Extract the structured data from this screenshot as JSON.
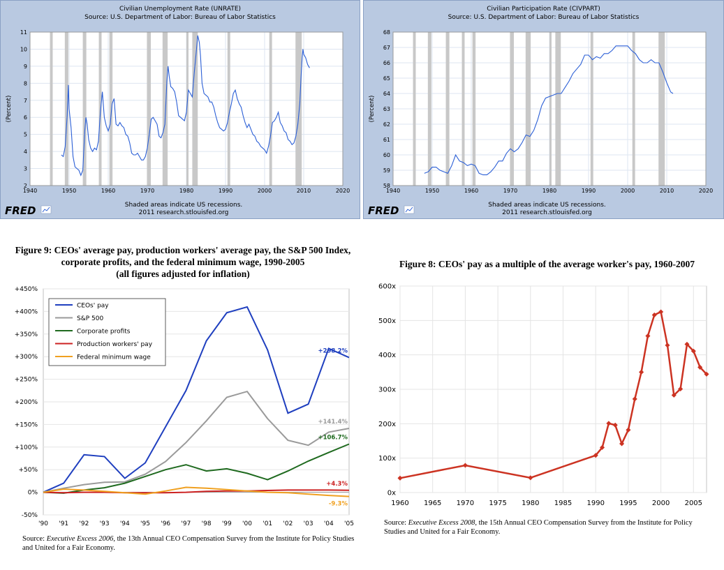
{
  "chart_data": [
    {
      "type": "line",
      "title": "Civilian Unemployment Rate (UNRATE)",
      "subtitle": "Source: U.S. Department of Labor: Bureau of Labor Statistics",
      "ylabel": "(Percent)",
      "xlim": [
        1940,
        2020
      ],
      "ylim": [
        2,
        11
      ],
      "x_ticks": [
        "1940",
        "1950",
        "1960",
        "1970",
        "1980",
        "1990",
        "2000",
        "2010",
        "2020"
      ],
      "y_ticks": [
        "2",
        "3",
        "4",
        "5",
        "6",
        "7",
        "8",
        "9",
        "10",
        "11"
      ],
      "recessions": [
        [
          1945.1,
          1945.8
        ],
        [
          1948.9,
          1949.8
        ],
        [
          1953.5,
          1954.4
        ],
        [
          1957.6,
          1958.3
        ],
        [
          1960.3,
          1961.1
        ],
        [
          1969.9,
          1970.9
        ],
        [
          1973.9,
          1975.2
        ],
        [
          1980.0,
          1980.5
        ],
        [
          1981.5,
          1982.9
        ],
        [
          1990.5,
          1991.2
        ],
        [
          2001.2,
          2001.9
        ],
        [
          2007.9,
          2009.5
        ]
      ],
      "series": [
        {
          "x": [
            1948,
            1948.5,
            1949,
            1949.5,
            1949.8,
            1950,
            1950.5,
            1951,
            1951.5,
            1952,
            1952.5,
            1953,
            1953.5,
            1954,
            1954.3,
            1954.6,
            1955,
            1955.5,
            1956,
            1956.5,
            1957,
            1957.5,
            1958,
            1958.5,
            1959,
            1959.5,
            1960,
            1960.5,
            1961,
            1961.5,
            1962,
            1962.5,
            1963,
            1963.5,
            1964,
            1964.5,
            1965,
            1965.5,
            1966,
            1966.5,
            1967,
            1967.5,
            1968,
            1968.5,
            1969,
            1969.5,
            1970,
            1970.5,
            1971,
            1971.5,
            1972,
            1972.5,
            1973,
            1973.5,
            1974,
            1974.5,
            1975,
            1975.3,
            1975.6,
            1976,
            1976.5,
            1977,
            1977.5,
            1978,
            1978.5,
            1979,
            1979.5,
            1980,
            1980.5,
            1981,
            1981.5,
            1982,
            1982.5,
            1982.9,
            1983.3,
            1983.6,
            1984,
            1984.5,
            1985,
            1985.5,
            1986,
            1986.5,
            1987,
            1987.5,
            1988,
            1988.5,
            1989,
            1989.5,
            1990,
            1990.5,
            1991,
            1991.5,
            1992,
            1992.5,
            1993,
            1993.5,
            1994,
            1994.5,
            1995,
            1995.5,
            1996,
            1996.5,
            1997,
            1997.5,
            1998,
            1998.5,
            1999,
            1999.5,
            2000,
            2000.5,
            2001,
            2001.5,
            2002,
            2002.5,
            2003,
            2003.5,
            2004,
            2004.5,
            2005,
            2005.5,
            2006,
            2006.5,
            2007,
            2007.5,
            2008,
            2008.5,
            2009,
            2009.3,
            2009.6,
            2009.8,
            2010,
            2010.5,
            2011,
            2011.5
          ],
          "y": [
            3.8,
            3.7,
            4.3,
            6.1,
            7.9,
            6.5,
            5.4,
            3.7,
            3.1,
            3.0,
            2.9,
            2.6,
            2.9,
            5.2,
            6.0,
            5.6,
            4.7,
            4.2,
            4.0,
            4.2,
            4.1,
            4.6,
            6.3,
            7.5,
            6.0,
            5.5,
            5.2,
            5.6,
            6.8,
            7.1,
            5.6,
            5.5,
            5.7,
            5.5,
            5.4,
            5.0,
            4.9,
            4.5,
            3.9,
            3.8,
            3.8,
            3.9,
            3.7,
            3.5,
            3.5,
            3.7,
            4.2,
            5.0,
            5.9,
            6.0,
            5.8,
            5.6,
            4.9,
            4.8,
            5.1,
            5.6,
            8.1,
            9.0,
            8.4,
            7.8,
            7.7,
            7.5,
            6.9,
            6.1,
            6.0,
            5.9,
            5.8,
            6.3,
            7.6,
            7.4,
            7.2,
            8.6,
            9.8,
            10.8,
            10.4,
            9.6,
            8.0,
            7.4,
            7.3,
            7.2,
            6.9,
            6.9,
            6.6,
            6.1,
            5.7,
            5.4,
            5.3,
            5.2,
            5.3,
            5.7,
            6.3,
            6.8,
            7.4,
            7.6,
            7.1,
            6.8,
            6.6,
            6.1,
            5.7,
            5.4,
            5.6,
            5.3,
            5.0,
            4.9,
            4.6,
            4.5,
            4.3,
            4.2,
            4.1,
            3.9,
            4.3,
            4.9,
            5.7,
            5.8,
            6.0,
            6.3,
            5.7,
            5.5,
            5.2,
            5.1,
            4.7,
            4.6,
            4.4,
            4.5,
            4.9,
            5.6,
            6.8,
            8.3,
            9.5,
            10.0,
            9.7,
            9.5,
            9.1,
            8.9
          ]
        }
      ]
    },
    {
      "type": "line",
      "title": "Civilian Participation Rate (CIVPART)",
      "subtitle": "Source: U.S. Department of Labor: Bureau of Labor Statistics",
      "ylabel": "(Percent)",
      "xlim": [
        1940,
        2020
      ],
      "ylim": [
        58,
        68
      ],
      "x_ticks": [
        "1940",
        "1950",
        "1960",
        "1970",
        "1980",
        "1990",
        "2000",
        "2010",
        "2020"
      ],
      "y_ticks": [
        "58",
        "59",
        "60",
        "61",
        "62",
        "63",
        "64",
        "65",
        "66",
        "67",
        "68"
      ],
      "recessions": [
        [
          1945.1,
          1945.8
        ],
        [
          1948.9,
          1949.8
        ],
        [
          1953.5,
          1954.4
        ],
        [
          1957.6,
          1958.3
        ],
        [
          1960.3,
          1961.1
        ],
        [
          1969.9,
          1970.9
        ],
        [
          1973.9,
          1975.2
        ],
        [
          1980.0,
          1980.5
        ],
        [
          1981.5,
          1982.9
        ],
        [
          1990.5,
          1991.2
        ],
        [
          2001.2,
          2001.9
        ],
        [
          2007.9,
          2009.5
        ]
      ],
      "series": [
        {
          "x": [
            1948,
            1949,
            1950,
            1951,
            1952,
            1953,
            1954,
            1955,
            1956,
            1957,
            1958,
            1959,
            1960,
            1961,
            1962,
            1963,
            1964,
            1965,
            1966,
            1967,
            1968,
            1969,
            1970,
            1971,
            1972,
            1973,
            1974,
            1975,
            1976,
            1977,
            1978,
            1979,
            1980,
            1981,
            1982,
            1983,
            1984,
            1985,
            1986,
            1987,
            1988,
            1989,
            1990,
            1991,
            1992,
            1993,
            1994,
            1995,
            1996,
            1997,
            1998,
            1999,
            2000,
            2001,
            2002,
            2003,
            2004,
            2005,
            2006,
            2007,
            2008,
            2009,
            2010,
            2011,
            2011.6
          ],
          "y": [
            58.8,
            58.9,
            59.2,
            59.2,
            59.0,
            58.9,
            58.8,
            59.3,
            60.0,
            59.6,
            59.5,
            59.3,
            59.4,
            59.3,
            58.8,
            58.7,
            58.7,
            58.9,
            59.2,
            59.6,
            59.6,
            60.1,
            60.4,
            60.2,
            60.4,
            60.8,
            61.3,
            61.2,
            61.6,
            62.3,
            63.2,
            63.7,
            63.8,
            63.9,
            64.0,
            64.0,
            64.4,
            64.8,
            65.3,
            65.6,
            65.9,
            66.5,
            66.5,
            66.2,
            66.4,
            66.3,
            66.6,
            66.6,
            66.8,
            67.1,
            67.1,
            67.1,
            67.1,
            66.8,
            66.6,
            66.2,
            66.0,
            66.0,
            66.2,
            66.0,
            66.0,
            65.4,
            64.7,
            64.1,
            64.0
          ]
        }
      ]
    },
    {
      "type": "line",
      "title": "Figure 9: CEOs' average pay, production workers' average pay, the S&P 500 Index, corporate profits, and the federal minimum wage, 1990-2005",
      "subtitle": "(all figures adjusted for inflation)",
      "categories": [
        "'90",
        "'91",
        "'92",
        "'93",
        "'94",
        "'95",
        "'96",
        "'97",
        "'98",
        "'99",
        "'00",
        "'01",
        "'02",
        "'03",
        "'04",
        "'05"
      ],
      "ylim": [
        -50,
        450
      ],
      "y_ticks": [
        "+450%",
        "+400%",
        "+350%",
        "+300%",
        "+250%",
        "+200%",
        "+150%",
        "+100%",
        "+50%",
        "0%",
        "-50%"
      ],
      "legend_position": "top-left",
      "series": [
        {
          "name": "CEOs' pay",
          "color": "#1f3fbf",
          "values": [
            0,
            20,
            83,
            79,
            31,
            65,
            145,
            225,
            335,
            397,
            410,
            315,
            175,
            195,
            318,
            298.2
          ],
          "end_label": "+298.2%"
        },
        {
          "name": "S&P 500",
          "color": "#9a9a9a",
          "values": [
            0,
            9,
            17,
            22,
            23,
            40,
            68,
            110,
            158,
            210,
            223,
            163,
            115,
            104,
            133,
            141.4
          ],
          "end_label": "+141.4%"
        },
        {
          "name": "Corporate profits",
          "color": "#1f6a1f",
          "values": [
            0,
            -2,
            5,
            10,
            20,
            35,
            50,
            61,
            47,
            52,
            42,
            28,
            47,
            69,
            88,
            106.7
          ],
          "end_label": "+106.7%"
        },
        {
          "name": "Production workers' pay",
          "color": "#cc2222",
          "values": [
            0,
            -1,
            0,
            0,
            -1,
            -1,
            -1,
            0,
            2,
            3,
            3,
            4,
            5,
            5,
            5,
            4.3
          ],
          "end_label": "+4.3%"
        },
        {
          "name": "Federal minimum wage",
          "color": "#f0a020",
          "values": [
            0,
            7,
            5,
            2,
            -1,
            -4,
            3,
            11,
            9,
            6,
            3,
            0,
            -1,
            -4,
            -7,
            -9.3
          ],
          "end_label": "-9.3%"
        }
      ]
    },
    {
      "type": "line",
      "title": "Figure 8: CEOs' pay as a multiple of the average worker's pay, 1960-2007",
      "xlim": [
        1960,
        2007
      ],
      "ylim": [
        0,
        600
      ],
      "x_ticks": [
        "1960",
        "1965",
        "1970",
        "1975",
        "1980",
        "1985",
        "1990",
        "1995",
        "2000",
        "2005"
      ],
      "y_ticks": [
        "0x",
        "100x",
        "200x",
        "300x",
        "400x",
        "500x",
        "600x"
      ],
      "series": [
        {
          "x": [
            1960,
            1970,
            1980,
            1990,
            1991,
            1992,
            1993,
            1994,
            1995,
            1996,
            1997,
            1998,
            1999,
            2000,
            2001,
            2002,
            2003,
            2004,
            2005,
            2006,
            2007
          ],
          "y": [
            42,
            79,
            43,
            108,
            131,
            201,
            196,
            142,
            182,
            272,
            350,
            455,
            516,
            525,
            428,
            283,
            301,
            431,
            411,
            364,
            344
          ]
        }
      ]
    }
  ],
  "fred": {
    "logo": "FRED",
    "shading_note": "Shaded areas indicate US recessions.",
    "site": "2011 research.stlouisfed.org"
  },
  "fig9": {
    "title_l1": "Figure 9: CEOs' average pay, production workers' average pay, the S&P 500 Index,",
    "title_l2": "corporate profits, and the federal minimum wage, 1990-2005",
    "title_l3": "(all figures adjusted for inflation)",
    "source_prefix": "Source: ",
    "source_pub": "Executive Excess 2006",
    "source_rest": ", the 13th Annual CEO Compensation Survey from the Institute for Policy Studies and United for a Fair Economy."
  },
  "fig8": {
    "title": "Figure 8: CEOs' pay as a multiple of the average worker's pay, 1960-2007",
    "source_prefix": "Source: ",
    "source_pub": "Executive Excess 2008",
    "source_rest": ", the 15th Annual CEO Compensation Survey from the Institute for Policy Studies and United for a Fair Economy."
  },
  "colors": {
    "fred_bg": "#b9c9e1",
    "fred_line": "#2b5fd6",
    "recession": "#c8c8c8",
    "fig8_line": "#cc3322"
  }
}
